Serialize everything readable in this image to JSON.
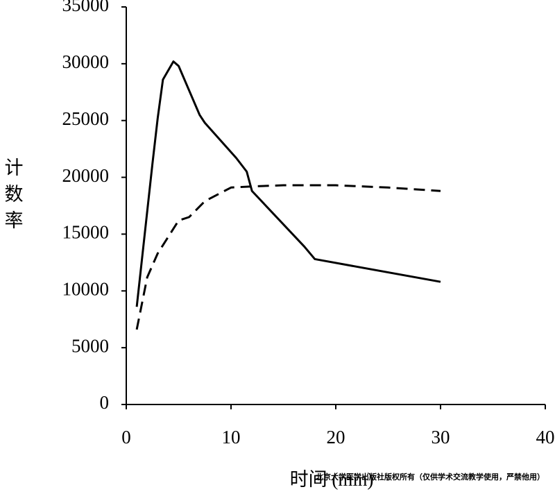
{
  "chart_data": {
    "type": "line",
    "xlabel": "时间 (min)",
    "ylabel": "计数率",
    "xlim": [
      0,
      40
    ],
    "xticks": [
      0,
      10,
      20,
      30,
      40
    ],
    "ylim": [
      0,
      35000
    ],
    "yticks": [
      0,
      5000,
      10000,
      15000,
      20000,
      25000,
      30000,
      35000
    ],
    "series": [
      {
        "color": "#000000",
        "linestyle": "solid",
        "x": [
          1,
          2.5,
          3,
          3.5,
          4.5,
          5,
          7,
          7.5,
          10.5,
          11.5,
          12,
          17,
          18,
          30
        ],
        "values": [
          8600,
          21200,
          25200,
          28600,
          30200,
          29800,
          25500,
          24800,
          21700,
          20500,
          18800,
          13900,
          12800,
          10800
        ]
      },
      {
        "color": "#000000",
        "linestyle": "dashed",
        "x": [
          1,
          2,
          3,
          5,
          6,
          7.5,
          10,
          12,
          15,
          20,
          25,
          30
        ],
        "values": [
          6600,
          11200,
          13300,
          16200,
          16500,
          17900,
          19100,
          19200,
          19300,
          19300,
          19100,
          18800
        ]
      }
    ]
  },
  "watermark": "北京大学医学出版社版权所有（仅供学术交流教学使用，严禁他用）"
}
